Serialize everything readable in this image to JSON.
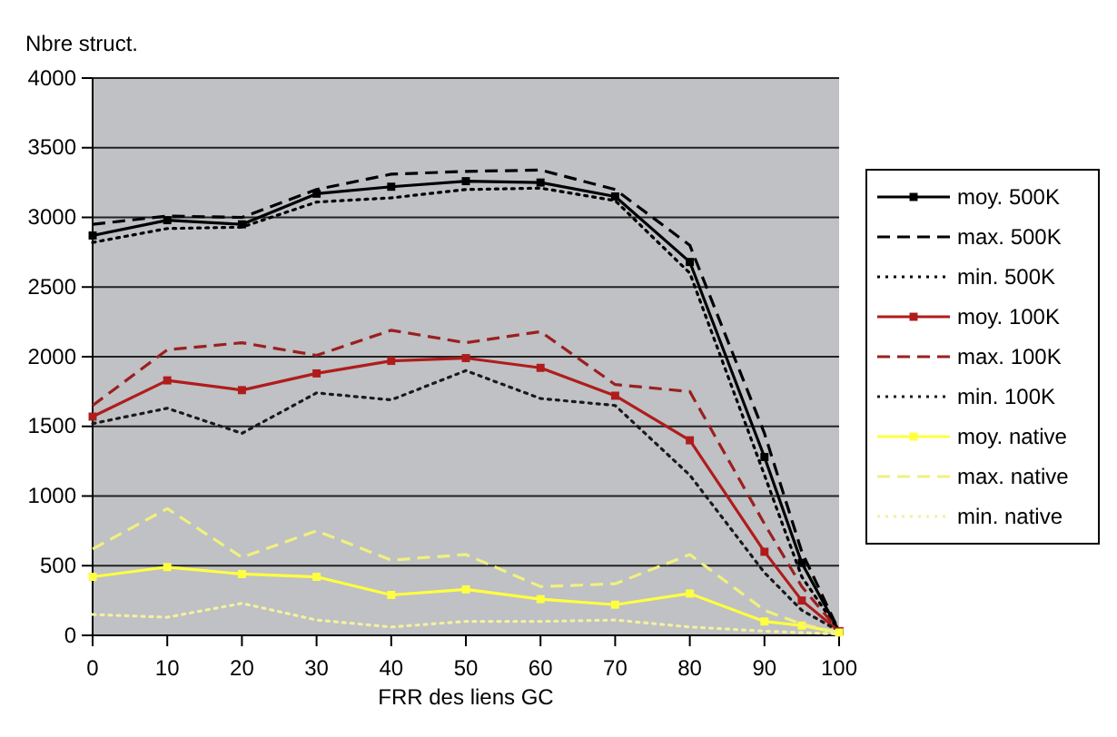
{
  "chart_data": {
    "type": "line",
    "xlabel": "FRR des liens GC",
    "ylabel": "Nbre struct.",
    "x": [
      0,
      10,
      20,
      30,
      40,
      50,
      60,
      70,
      80,
      90,
      95,
      100
    ],
    "xlim": [
      0,
      100
    ],
    "xticks": [
      0,
      10,
      20,
      30,
      40,
      50,
      60,
      70,
      80,
      90,
      100
    ],
    "ylim": [
      0,
      4000
    ],
    "yticks": [
      0,
      500,
      1000,
      1500,
      2000,
      2500,
      3000,
      3500,
      4000
    ],
    "grid": "y",
    "legend": "right",
    "series": [
      {
        "name": "moy. 500K",
        "color": "#000000",
        "marker": "square",
        "line_style": "solid",
        "values": [
          2870,
          2980,
          2950,
          3170,
          3220,
          3260,
          3250,
          3150,
          2680,
          1280,
          520,
          30
        ]
      },
      {
        "name": "max. 500K",
        "color": "#000000",
        "marker": "none",
        "line_style": "dashed",
        "values": [
          2950,
          3010,
          3000,
          3200,
          3310,
          3330,
          3340,
          3200,
          2800,
          1450,
          600,
          30
        ]
      },
      {
        "name": "min. 500K",
        "color": "#000000",
        "marker": "none",
        "line_style": "dotted",
        "values": [
          2820,
          2920,
          2930,
          3110,
          3140,
          3200,
          3210,
          3120,
          2600,
          1150,
          420,
          30
        ]
      },
      {
        "name": "moy. 100K",
        "color": "#b01c1c",
        "marker": "square",
        "line_style": "solid",
        "values": [
          1570,
          1830,
          1760,
          1880,
          1970,
          1990,
          1920,
          1720,
          1400,
          600,
          250,
          30
        ]
      },
      {
        "name": "max. 100K",
        "color": "#9a2020",
        "marker": "none",
        "line_style": "dashed",
        "values": [
          1650,
          2050,
          2100,
          2010,
          2190,
          2100,
          2180,
          1800,
          1750,
          800,
          350,
          30
        ]
      },
      {
        "name": "min. 100K",
        "color": "#1a1a1a",
        "marker": "none",
        "line_style": "dotted",
        "values": [
          1520,
          1630,
          1450,
          1740,
          1690,
          1900,
          1700,
          1650,
          1150,
          450,
          180,
          30
        ]
      },
      {
        "name": "moy. native",
        "color": "#ffff40",
        "marker": "square",
        "line_style": "solid",
        "values": [
          420,
          490,
          440,
          420,
          290,
          330,
          260,
          220,
          300,
          100,
          70,
          20
        ]
      },
      {
        "name": "max. native",
        "color": "#f0f080",
        "marker": "none",
        "line_style": "dashed",
        "values": [
          620,
          910,
          560,
          750,
          540,
          580,
          350,
          370,
          580,
          180,
          80,
          20
        ]
      },
      {
        "name": "min. native",
        "color": "#f4f0a0",
        "marker": "none",
        "line_style": "dotted",
        "values": [
          150,
          130,
          230,
          110,
          60,
          100,
          100,
          110,
          60,
          30,
          20,
          10
        ]
      }
    ]
  }
}
